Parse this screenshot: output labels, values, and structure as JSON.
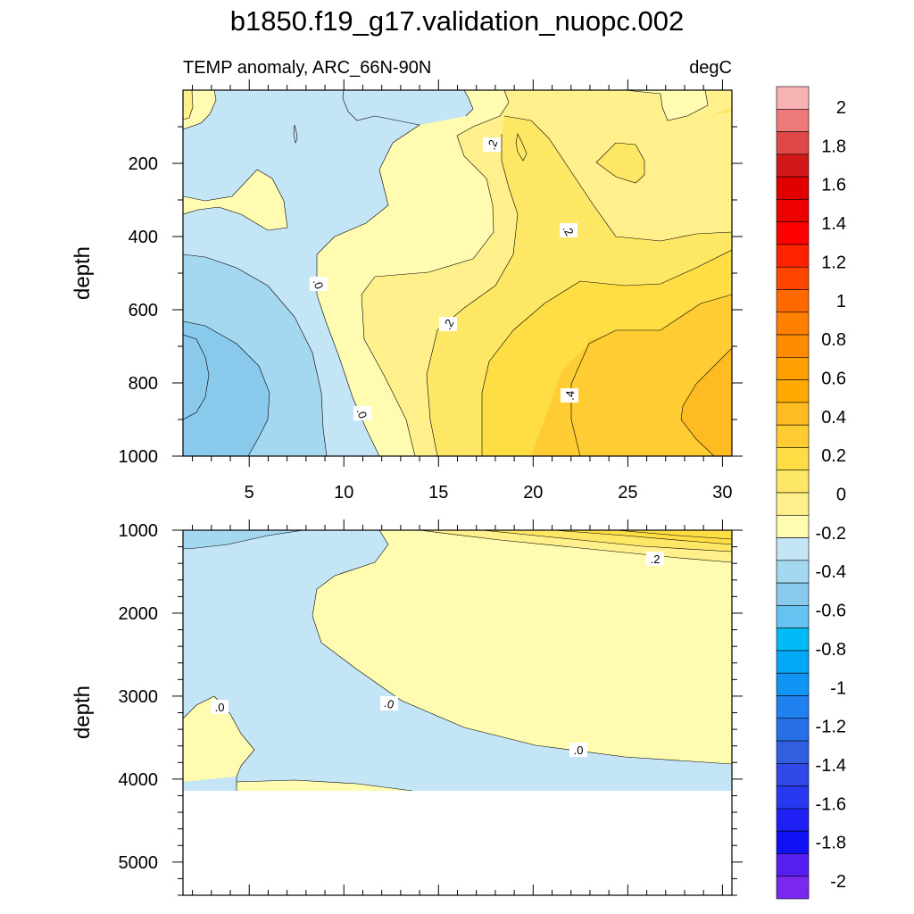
{
  "chart_data": {
    "type": "contour",
    "title": "b1850.f19_g17.validation_nuopc.002",
    "subtitle_left": "TEMP anomaly, ARC_66N-90N",
    "subtitle_right": "degC",
    "panels": [
      {
        "name": "upper",
        "ylabel": "depth",
        "ylim": [
          1000,
          0
        ],
        "xlim": [
          1.5,
          30.5
        ],
        "yticks": [
          200,
          400,
          600,
          800,
          1000
        ],
        "xticks": [
          5,
          10,
          15,
          20,
          25,
          30
        ],
        "contour_labels": [
          ".2",
          ".2",
          ".0",
          ".2",
          ".0",
          ".4"
        ]
      },
      {
        "name": "lower",
        "ylabel": "depth",
        "ylim": [
          5400,
          1000
        ],
        "xlim": [
          1.5,
          30.5
        ],
        "yticks": [
          1000,
          2000,
          3000,
          4000,
          5000
        ],
        "contour_labels": [
          ".2",
          ".0",
          ".0",
          ".0"
        ]
      }
    ],
    "colorbar": {
      "labels": [
        "2",
        "1.8",
        "1.6",
        "1.4",
        "1.2",
        "1",
        "0.8",
        "0.6",
        "0.4",
        "0.2",
        "0",
        "-0.2",
        "-0.4",
        "-0.6",
        "-0.8",
        "-1",
        "-1.2",
        "-1.4",
        "-1.6",
        "-1.8",
        "-2"
      ],
      "colors": [
        "#f7b3b3",
        "#ef7a7a",
        "#e04848",
        "#d01818",
        "#e00000",
        "#ee0000",
        "#ff0000",
        "#ff2200",
        "#ff4500",
        "#ff6a00",
        "#ff7f00",
        "#ff8c00",
        "#ff9f00",
        "#ffaa00",
        "#ffbb22",
        "#ffcc33",
        "#ffdd44",
        "#ffe766",
        "#fff08c",
        "#fffbb0",
        "#c4e5f5",
        "#a4d7f0",
        "#88c9ec",
        "#66c2f0",
        "#00bbf5",
        "#00a8f5",
        "#1095f5",
        "#2080f0",
        "#2870e8",
        "#3060e0",
        "#3048e8",
        "#2838f0",
        "#2020f5",
        "#1010f5",
        "#5520ef",
        "#7a28ee"
      ]
    },
    "fill_colors": {
      "n02": "#c4e5f5",
      "n04": "#a4d7f0",
      "n06": "#88c9ec",
      "p02": "#fffbb0",
      "p04": "#fff08c",
      "p06": "#ffe766",
      "p08": "#ffdd44",
      "p10": "#ffcc33",
      "p12": "#ffbb22"
    }
  }
}
